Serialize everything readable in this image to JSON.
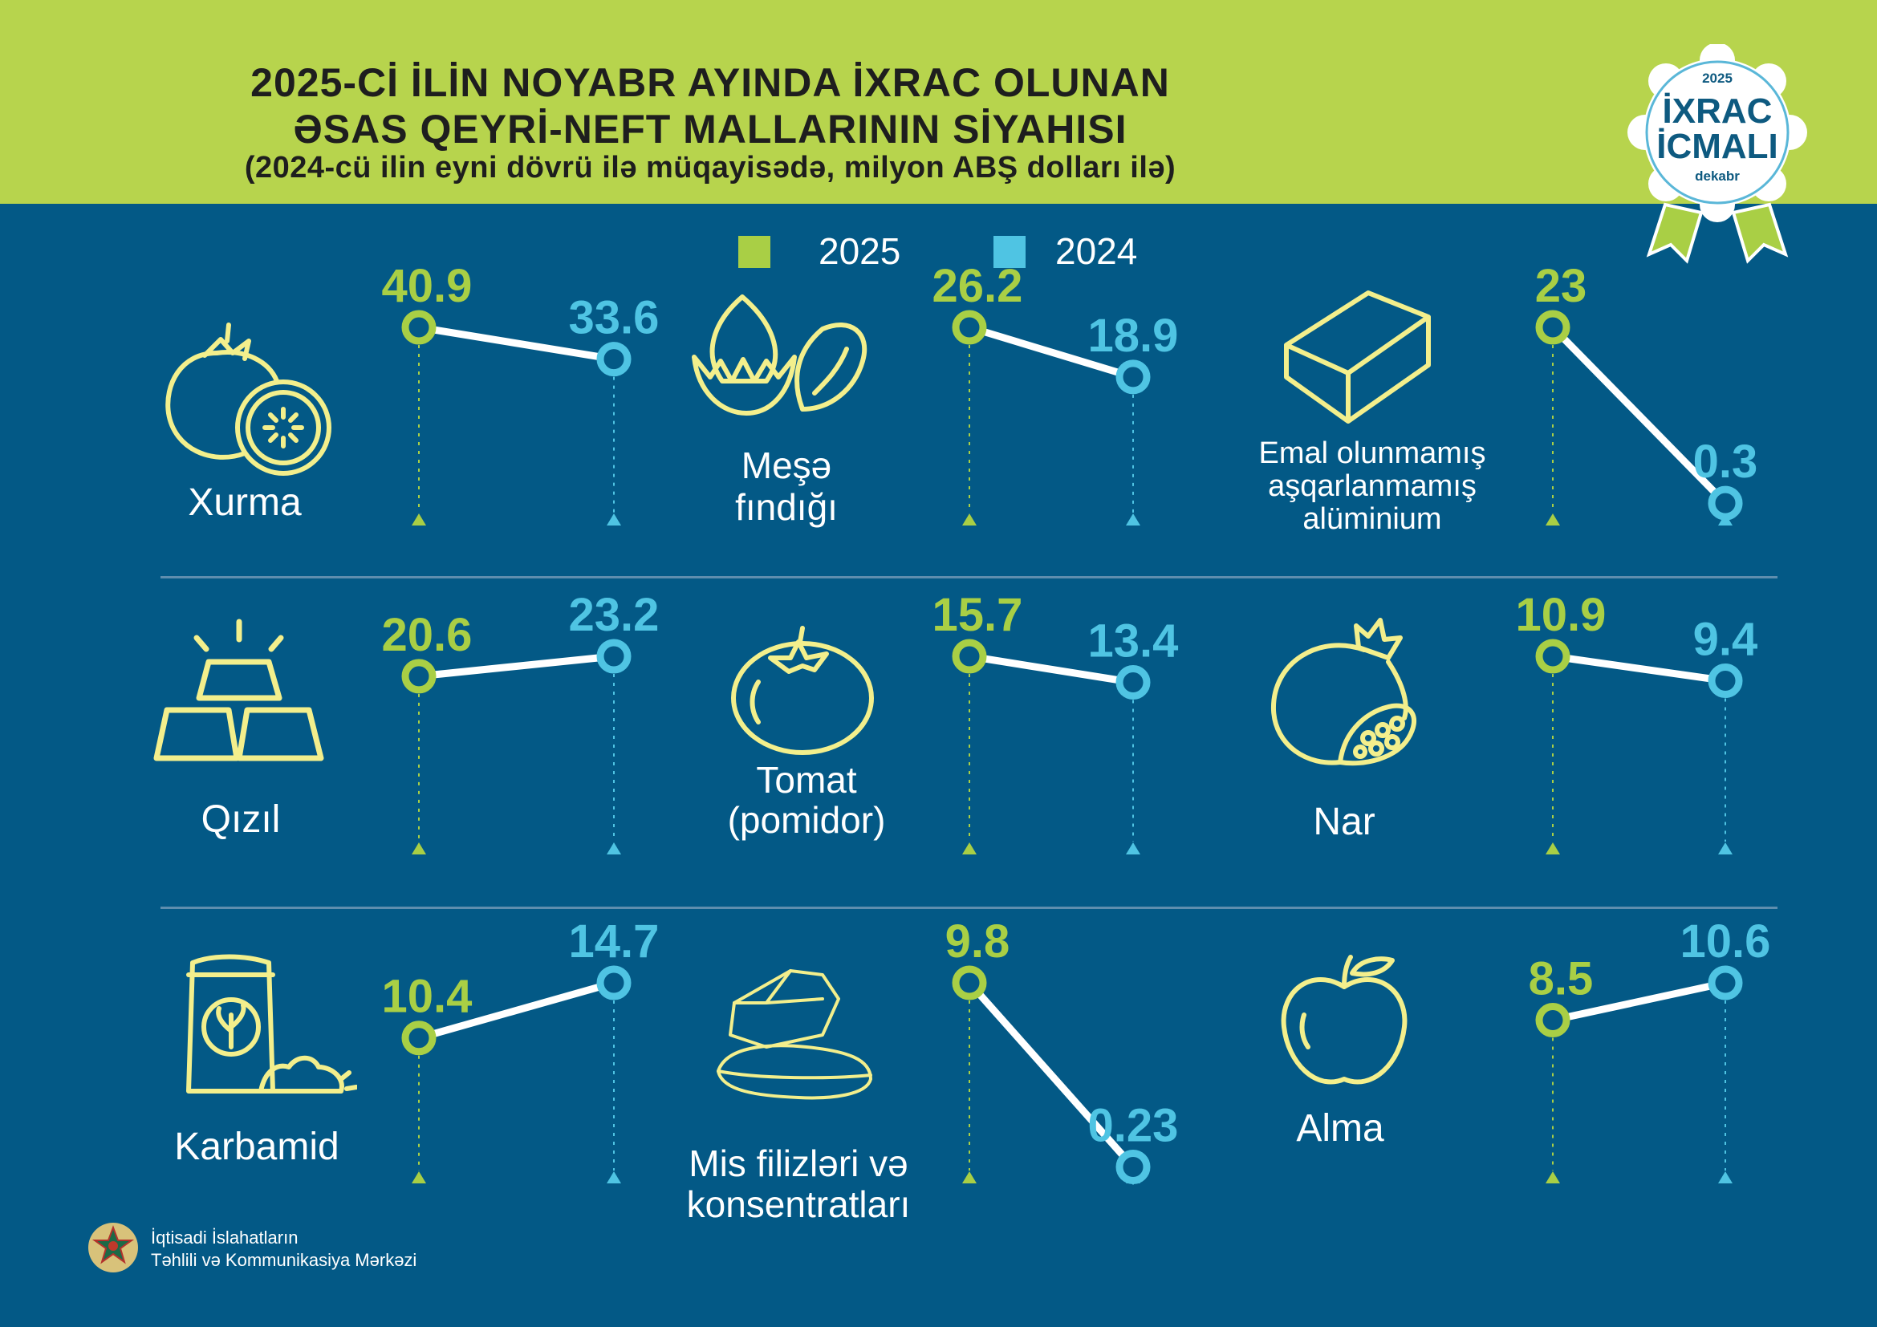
{
  "header": {
    "title_line1": "2025-Cİ İLİN NOYABR AYINDA İXRAC OLUNAN",
    "title_line2": "ƏSAS QEYRİ-NEFT MALLARININ SİYAHISI",
    "subtitle": "(2024-cü ilin eyni dövrü ilə müqayisədə, milyon ABŞ dolları ilə)",
    "background": "#b7d44d"
  },
  "badge": {
    "year": "2025",
    "line1": "İXRAC",
    "line2": "İCMALI",
    "month": "dekabr"
  },
  "legend": [
    {
      "label": "2025",
      "color": "#a9cf45"
    },
    {
      "label": "2024",
      "color": "#4fc4e3"
    }
  ],
  "colors": {
    "background": "#035986",
    "series_2025": "#a9cf45",
    "series_2024": "#4fc4e3",
    "icon_stroke": "#f3ef8c"
  },
  "footer": {
    "line1": "İqtisadi İslahatların",
    "line2": "Təhlili və Kommunikasiya Mərkəzi"
  },
  "chart_data": {
    "type": "line",
    "series_names": [
      "2025",
      "2024"
    ],
    "unit": "milyon ABŞ dolları",
    "items": [
      {
        "label": "Xurma",
        "icon": "persimmon-icon",
        "values": [
          40.9,
          33.6
        ],
        "labels": [
          "40.9",
          "33.6"
        ]
      },
      {
        "label": "Meşə\nfındığı",
        "icon": "hazelnut-icon",
        "values": [
          26.2,
          18.9
        ],
        "labels": [
          "26.2",
          "18.9"
        ]
      },
      {
        "label": "Emal olunmamış\naşqarlanmamış\nalüminium",
        "icon": "aluminium-ingot-icon",
        "values": [
          23,
          0.3
        ],
        "labels": [
          "23",
          "0.3"
        ]
      },
      {
        "label": "Qızıl",
        "icon": "gold-bars-icon",
        "values": [
          20.6,
          23.2
        ],
        "labels": [
          "20.6",
          "23.2"
        ]
      },
      {
        "label": "Tomat\n(pomidor)",
        "icon": "tomato-icon",
        "values": [
          15.7,
          13.4
        ],
        "labels": [
          "15.7",
          "13.4"
        ]
      },
      {
        "label": "Nar",
        "icon": "pomegranate-icon",
        "values": [
          10.9,
          9.4
        ],
        "labels": [
          "10.9",
          "9.4"
        ]
      },
      {
        "label": "Karbamid",
        "icon": "fertilizer-bag-icon",
        "values": [
          10.4,
          14.7
        ],
        "labels": [
          "10.4",
          "14.7"
        ]
      },
      {
        "label": "Mis filizləri və\nkonsentratları",
        "icon": "copper-ore-icon",
        "values": [
          9.8,
          0.23
        ],
        "labels": [
          "9.8",
          "0.23"
        ]
      },
      {
        "label": "Alma",
        "icon": "apple-icon",
        "values": [
          8.5,
          10.6
        ],
        "labels": [
          "8.5",
          "10.6"
        ]
      }
    ]
  }
}
